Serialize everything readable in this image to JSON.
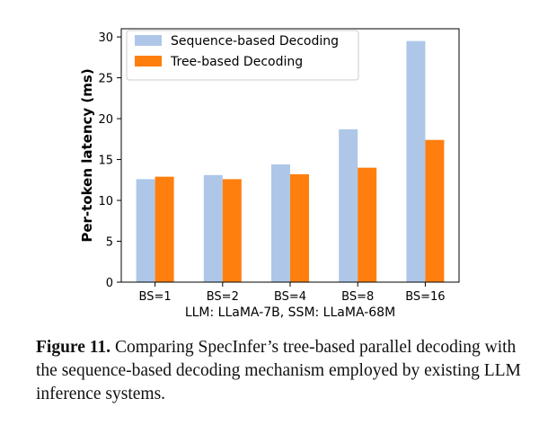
{
  "chart_data": {
    "type": "bar",
    "categories": [
      "BS=1",
      "BS=2",
      "BS=4",
      "BS=8",
      "BS=16"
    ],
    "series": [
      {
        "name": "Sequence-based Decoding",
        "values": [
          12.6,
          13.1,
          14.4,
          18.7,
          29.5
        ],
        "color": "#aec7e8"
      },
      {
        "name": "Tree-based Decoding",
        "values": [
          12.9,
          12.6,
          13.2,
          14.0,
          17.4
        ],
        "color": "#ff7f0e"
      }
    ],
    "title": "",
    "xlabel": "LLM: LLaMA-7B, SSM: LLaMA-68M",
    "ylabel": "Per-token latency (ms)",
    "ylim": [
      0,
      31
    ],
    "yticks": [
      0,
      5,
      10,
      15,
      20,
      25,
      30
    ],
    "legend_position": "top-left"
  },
  "caption": {
    "label": "Figure 11.",
    "text": "Comparing SpecInfer’s tree-based parallel decoding with the sequence-based decoding mechanism employed by existing LLM inference systems."
  }
}
